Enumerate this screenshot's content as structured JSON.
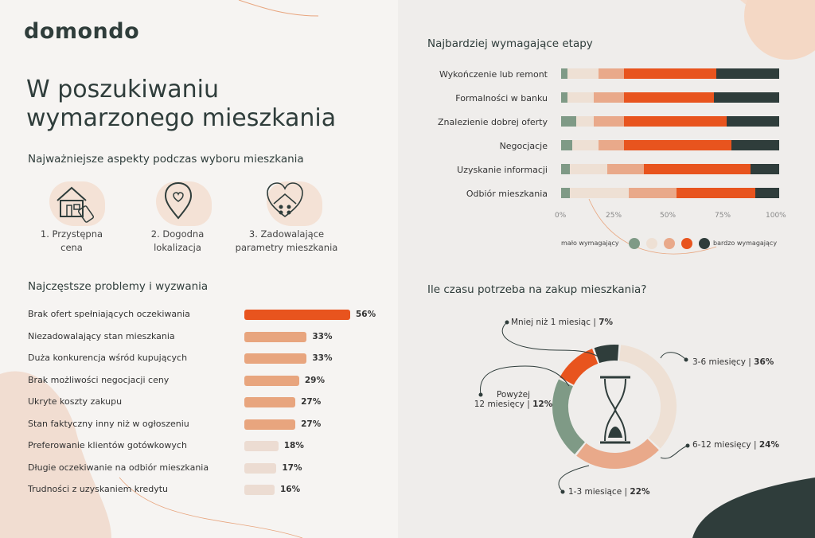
{
  "logo": "domondo",
  "title_line1": "W poszukiwaniu",
  "title_line2": "wymarzonego mieszkania",
  "aspects": {
    "heading": "Najważniejsze aspekty podczas wyboru mieszkania",
    "items": [
      {
        "line1": "1. Przystępna",
        "line2": "cena",
        "icon": "house-price-tag-icon"
      },
      {
        "line1": "2. Dogodna",
        "line2": "lokalizacja",
        "icon": "location-heart-icon"
      },
      {
        "line1": "3. Zadowalające",
        "line2": "parametry mieszkania",
        "icon": "house-heart-icon"
      }
    ]
  },
  "problems": {
    "heading": "Najczęstsze problemy i wyzwania",
    "items": [
      {
        "label": "Brak ofert spełniających oczekiwania",
        "value": 56,
        "display": "56%"
      },
      {
        "label": "Niezadowalający stan mieszkania",
        "value": 33,
        "display": "33%"
      },
      {
        "label": "Duża konkurencja wśród kupujących",
        "value": 33,
        "display": "33%"
      },
      {
        "label": "Brak możliwości negocjacji ceny",
        "value": 29,
        "display": "29%"
      },
      {
        "label": "Ukryte koszty zakupu",
        "value": 27,
        "display": "27%"
      },
      {
        "label": "Stan faktyczny inny niż w ogłoszeniu",
        "value": 27,
        "display": "27%"
      },
      {
        "label": "Preferowanie klientów gotówkowych",
        "value": 18,
        "display": "18%"
      },
      {
        "label": "Długie oczekiwanie na odbiór mieszkania",
        "value": 17,
        "display": "17%"
      },
      {
        "label": "Trudności z uzyskaniem kredytu",
        "value": 16,
        "display": "16%"
      }
    ],
    "colors": {
      "top": "#e8541e",
      "mid": "#e8a57e",
      "low": "#ecdcd2"
    }
  },
  "stages": {
    "heading": "Najbardziej wymagające etapy",
    "ticks": [
      "0%",
      "25%",
      "50%",
      "75%",
      "100%"
    ],
    "legend_left": "mało wymagający",
    "legend_right": "bardzo wymagający",
    "colors": [
      "#7f9a86",
      "#eee0d4",
      "#e9a98a",
      "#e8541e",
      "#2f3d3b"
    ]
  },
  "time": {
    "heading": "Ile czasu potrzeba na zakup mieszkania?",
    "labels": [
      {
        "text": "Mniej niż 1 miesiąc",
        "value": "7%"
      },
      {
        "text": "3-6 miesięcy",
        "value": "36%"
      },
      {
        "text": "Powyżej",
        "text2": "12 miesięcy",
        "value": "12%"
      },
      {
        "text": "6-12 miesięcy",
        "value": "24%"
      },
      {
        "text": "1-3 miesiące",
        "value": "22%"
      }
    ]
  },
  "chart_data": [
    {
      "type": "bar",
      "title": "Najczęstsze problemy i wyzwania",
      "categories": [
        "Brak ofert spełniających oczekiwania",
        "Niezadowalający stan mieszkania",
        "Duża konkurencja wśród kupujących",
        "Brak możliwości negocjacji ceny",
        "Ukryte koszty zakupu",
        "Stan faktyczny inny niż w ogłoszeniu",
        "Preferowanie klientów gotówkowych",
        "Długie oczekiwanie na odbiór mieszkania",
        "Trudności z uzyskaniem kredytu"
      ],
      "values": [
        56,
        33,
        33,
        29,
        27,
        27,
        18,
        17,
        16
      ],
      "unit": "%"
    },
    {
      "type": "bar",
      "orientation": "horizontal-stacked",
      "title": "Najbardziej wymagające etapy",
      "categories": [
        "Wykończenie lub remont",
        "Formalności w banku",
        "Znalezienie dobrej oferty",
        "Negocjacje",
        "Uzyskanie informacji",
        "Odbiór mieszkania"
      ],
      "series": [
        {
          "name": "mało wymagający",
          "values": [
            3,
            3,
            7,
            5,
            4,
            4
          ]
        },
        {
          "name": "",
          "values": [
            14,
            12,
            8,
            12,
            17,
            27
          ]
        },
        {
          "name": "",
          "values": [
            12,
            14,
            14,
            12,
            17,
            22
          ]
        },
        {
          "name": "",
          "values": [
            42,
            41,
            47,
            49,
            49,
            36
          ]
        },
        {
          "name": "bardzo wymagający",
          "values": [
            29,
            30,
            24,
            22,
            13,
            11
          ]
        }
      ],
      "xlim": [
        0,
        100
      ],
      "ticks": [
        "0%",
        "25%",
        "50%",
        "75%",
        "100%"
      ]
    },
    {
      "type": "pie",
      "title": "Ile czasu potrzeba na zakup mieszkania?",
      "categories": [
        "Mniej niż 1 miesiąc",
        "3-6 miesięcy",
        "6-12 miesięcy",
        "1-3 miesiące",
        "Powyżej 12 miesięcy"
      ],
      "values": [
        7,
        36,
        24,
        22,
        12
      ],
      "colors": [
        "#2f3d3b",
        "#eee0d4",
        "#e9a98a",
        "#7f9a86",
        "#e8541e"
      ]
    }
  ]
}
